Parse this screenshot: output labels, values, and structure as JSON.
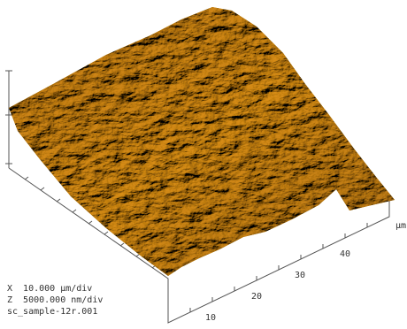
{
  "axis": {
    "ticks": [
      "10",
      "20",
      "30",
      "40"
    ],
    "unit": "µm"
  },
  "info": [
    "X  10.000 µm/div",
    "Z  5000.000 nm/div",
    "sc_sample-12r.001"
  ]
}
